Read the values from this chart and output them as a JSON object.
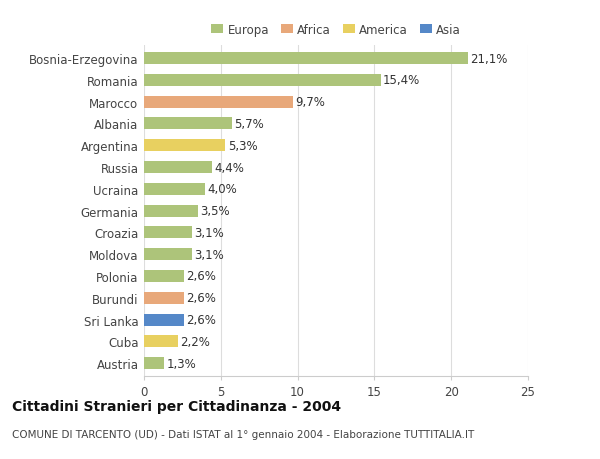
{
  "categories": [
    "Bosnia-Erzegovina",
    "Romania",
    "Marocco",
    "Albania",
    "Argentina",
    "Russia",
    "Ucraina",
    "Germania",
    "Croazia",
    "Moldova",
    "Polonia",
    "Burundi",
    "Sri Lanka",
    "Cuba",
    "Austria"
  ],
  "values": [
    21.1,
    15.4,
    9.7,
    5.7,
    5.3,
    4.4,
    4.0,
    3.5,
    3.1,
    3.1,
    2.6,
    2.6,
    2.6,
    2.2,
    1.3
  ],
  "labels": [
    "21,1%",
    "15,4%",
    "9,7%",
    "5,7%",
    "5,3%",
    "4,4%",
    "4,0%",
    "3,5%",
    "3,1%",
    "3,1%",
    "2,6%",
    "2,6%",
    "2,6%",
    "2,2%",
    "1,3%"
  ],
  "colors": [
    "#adc47a",
    "#adc47a",
    "#e8a87a",
    "#adc47a",
    "#e8d060",
    "#adc47a",
    "#adc47a",
    "#adc47a",
    "#adc47a",
    "#adc47a",
    "#adc47a",
    "#e8a87a",
    "#5588c8",
    "#e8d060",
    "#adc47a"
  ],
  "continent_colors": {
    "Europa": "#adc47a",
    "Africa": "#e8a87a",
    "America": "#e8d060",
    "Asia": "#5588c8"
  },
  "legend_labels": [
    "Europa",
    "Africa",
    "America",
    "Asia"
  ],
  "xlim": [
    0,
    25
  ],
  "xticks": [
    0,
    5,
    10,
    15,
    20,
    25
  ],
  "title_main": "Cittadini Stranieri per Cittadinanza - 2004",
  "title_sub": "COMUNE DI TARCENTO (UD) - Dati ISTAT al 1° gennaio 2004 - Elaborazione TUTTITALIA.IT",
  "bg_color": "#ffffff",
  "bar_height": 0.55,
  "label_fontsize": 8.5,
  "tick_fontsize": 8.5,
  "title_fontsize": 10,
  "subtitle_fontsize": 7.5
}
